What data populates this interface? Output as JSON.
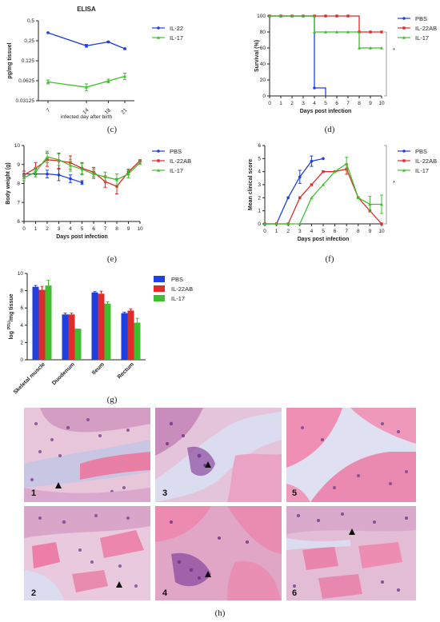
{
  "colors": {
    "blue": "#1f3fe0",
    "red": "#e02b2b",
    "green": "#3fbf2f",
    "ink": "#222222"
  },
  "panels": [
    {
      "label": "(c)",
      "chart_data": {
        "type": "line",
        "title": "ELISA",
        "xlabel": "infected day after birth",
        "ylabel": "pg/mg tissuel",
        "x": [
          7,
          14,
          18,
          21
        ],
        "yscale": "log2",
        "yticks": [
          "0.5",
          "0.25",
          "0.125",
          "0.0625",
          "0.03125"
        ],
        "ylim": [
          0.03125,
          0.5
        ],
        "series": [
          {
            "name": "IL-22",
            "values": [
              0.33,
              0.21,
              0.24,
              0.19
            ],
            "err": [
              0.0,
              0.01,
              0.005,
              0.005
            ]
          },
          {
            "name": "IL-17",
            "values": [
              0.06,
              0.05,
              0.062,
              0.073
            ],
            "err": [
              0.004,
              0.006,
              0.004,
              0.008
            ]
          }
        ]
      }
    },
    {
      "label": "(d)",
      "chart_data": {
        "type": "line",
        "xlabel": "Days post infection",
        "ylabel": "Survival (%)",
        "x": [
          0,
          1,
          2,
          3,
          4,
          5,
          6,
          7,
          8,
          9,
          10
        ],
        "xlim": [
          0,
          10
        ],
        "ylim": [
          0,
          100
        ],
        "yticks": [
          0,
          20,
          40,
          60,
          80,
          100
        ],
        "series": [
          {
            "name": "PBS",
            "steps": [
              [
                0,
                100
              ],
              [
                4,
                100
              ],
              [
                4,
                10
              ],
              [
                5,
                10
              ],
              [
                5,
                0
              ]
            ]
          },
          {
            "name": "IL-22AB",
            "steps": [
              [
                0,
                100
              ],
              [
                8,
                100
              ],
              [
                8,
                80
              ],
              [
                10,
                80
              ]
            ]
          },
          {
            "name": "IL-17",
            "steps": [
              [
                0,
                100
              ],
              [
                4,
                100
              ],
              [
                4,
                80
              ],
              [
                8,
                80
              ],
              [
                8,
                60
              ],
              [
                10,
                60
              ]
            ]
          }
        ],
        "annotation": "*"
      }
    },
    {
      "label": "(e)",
      "chart_data": {
        "type": "line",
        "xlabel": "Days post infection",
        "ylabel": "Body weight (g)",
        "xlim": [
          0,
          10
        ],
        "ylim": [
          6,
          10
        ],
        "yticks": [
          6,
          7,
          8,
          9,
          10
        ],
        "series": [
          {
            "name": "PBS",
            "x": [
              0,
              1,
              2,
              3,
              4,
              5
            ],
            "values": [
              8.5,
              8.5,
              8.5,
              8.45,
              8.25,
              8.05
            ],
            "err": [
              0.15,
              0.15,
              0.2,
              0.3,
              0.2,
              0.1
            ]
          },
          {
            "name": "IL-22AB",
            "x": [
              0,
              1,
              2,
              3,
              4,
              5,
              6,
              7,
              8,
              9,
              10
            ],
            "values": [
              8.45,
              8.8,
              9.25,
              9.2,
              9.1,
              8.8,
              8.6,
              8.1,
              7.85,
              8.6,
              9.2
            ],
            "err": [
              0.2,
              0.3,
              0.35,
              0.4,
              0.35,
              0.3,
              0.25,
              0.3,
              0.4,
              0.15,
              0.05
            ]
          },
          {
            "name": "IL-17",
            "x": [
              0,
              1,
              2,
              3,
              4,
              5,
              6,
              7,
              8,
              9,
              10
            ],
            "values": [
              8.3,
              8.6,
              9.4,
              9.25,
              8.95,
              8.75,
              8.5,
              8.35,
              8.2,
              8.5,
              9.1
            ],
            "err": [
              0.15,
              0.25,
              0.3,
              0.3,
              0.3,
              0.3,
              0.25,
              0.25,
              0.3,
              0.2,
              0.1
            ]
          }
        ]
      }
    },
    {
      "label": "(f)",
      "chart_data": {
        "type": "line",
        "xlabel": "Days post infection",
        "ylabel": "Mean clinical score",
        "xlim": [
          0,
          10
        ],
        "ylim": [
          0,
          6
        ],
        "yticks": [
          0,
          1,
          2,
          3,
          4,
          5,
          6
        ],
        "series": [
          {
            "name": "PBS",
            "x": [
              0,
              1,
              2,
              3,
              4,
              5
            ],
            "values": [
              0,
              0,
              2,
              3.6,
              4.8,
              5
            ],
            "err": [
              0,
              0,
              0,
              0.5,
              0.4,
              0
            ]
          },
          {
            "name": "IL-22AB",
            "x": [
              0,
              1,
              2,
              3,
              4,
              5,
              6,
              7,
              8,
              9,
              10
            ],
            "values": [
              0,
              0,
              0,
              2,
              3,
              4,
              4,
              4.2,
              2,
              1,
              0
            ],
            "err": [
              0,
              0,
              0,
              0,
              0,
              0,
              0,
              0.4,
              0,
              0,
              0
            ]
          },
          {
            "name": "IL-17",
            "x": [
              0,
              1,
              2,
              3,
              4,
              5,
              6,
              7,
              8,
              9,
              10
            ],
            "values": [
              0,
              0,
              0,
              0,
              2,
              3,
              4,
              4.6,
              2,
              1.5,
              1.5
            ],
            "err": [
              0,
              0,
              0,
              0,
              0,
              0,
              0,
              0.5,
              0,
              0.6,
              0.7
            ]
          }
        ],
        "annotation": "*"
      }
    },
    {
      "label": "(g)",
      "chart_data": {
        "type": "bar",
        "ylabel": "log PFU/mg tissue",
        "ylabel_sup": "PFU",
        "ylabel_parts": [
          "log ",
          "/mg tissue"
        ],
        "categories": [
          "Skeletal muscle",
          "Duodenum",
          "Ileum",
          "Rectum"
        ],
        "ylim": [
          0,
          10
        ],
        "yticks": [
          0,
          2,
          4,
          6,
          8,
          10
        ],
        "series": [
          {
            "name": "PBS",
            "values": [
              8.45,
              5.25,
              7.8,
              5.4
            ],
            "err": [
              0.15,
              0.15,
              0.1,
              0.1
            ]
          },
          {
            "name": "IL-22AB",
            "values": [
              8.1,
              5.25,
              7.65,
              5.7
            ],
            "err": [
              0.4,
              0.15,
              0.3,
              0.2
            ]
          },
          {
            "name": "IL-17",
            "values": [
              8.6,
              3.6,
              6.5,
              4.3
            ],
            "err": [
              0.6,
              0.0,
              0.2,
              0.5
            ]
          }
        ]
      }
    }
  ],
  "histology": {
    "label": "(h)",
    "panels": [
      {
        "number": "1"
      },
      {
        "number": "3"
      },
      {
        "number": "5"
      },
      {
        "number": "2"
      },
      {
        "number": "4"
      },
      {
        "number": "6"
      }
    ]
  }
}
